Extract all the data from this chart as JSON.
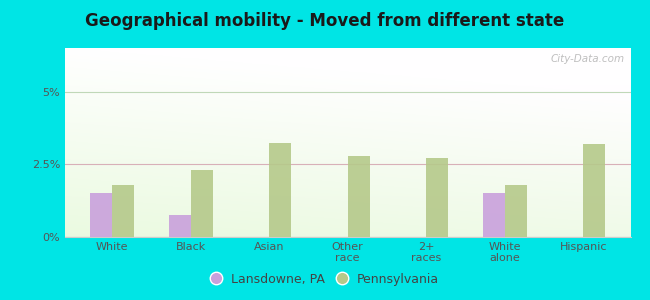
{
  "title": "Geographical mobility - Moved from different state",
  "categories": [
    "White",
    "Black",
    "Asian",
    "Other\nrace",
    "2+\nraces",
    "White\nalone",
    "Hispanic"
  ],
  "lansdowne_values": [
    1.5,
    0.75,
    0.0,
    0.0,
    0.0,
    1.5,
    0.0
  ],
  "pennsylvania_values": [
    1.8,
    2.3,
    3.25,
    2.8,
    2.7,
    1.8,
    3.2
  ],
  "lansdowne_color": "#c9a0dc",
  "pennsylvania_color": "#b5c98a",
  "ylim": [
    0,
    6.5
  ],
  "yticks": [
    0,
    2.5,
    5
  ],
  "ytick_labels": [
    "0%",
    "2.5%",
    "5%"
  ],
  "outer_background": "#00e5e5",
  "bar_width": 0.28,
  "legend_labels": [
    "Lansdowne, PA",
    "Pennsylvania"
  ],
  "watermark": "City-Data.com",
  "grid_color_25": "#e8c0c8",
  "grid_color_5": "#d8e8d0"
}
